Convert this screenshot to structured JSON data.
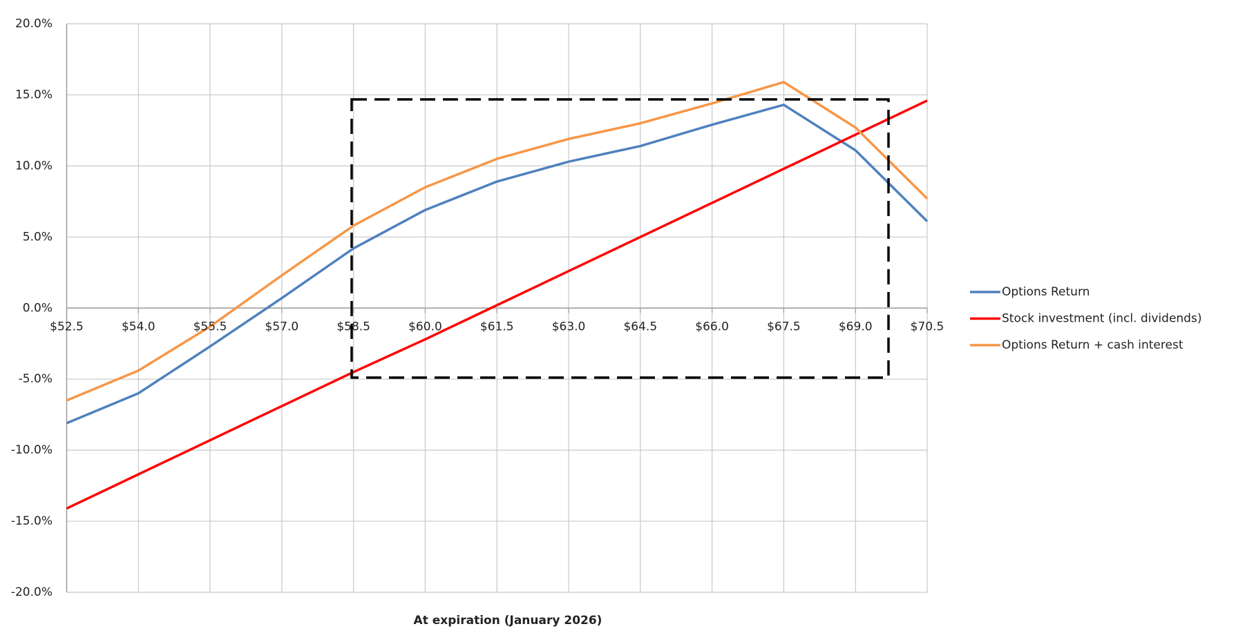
{
  "chart_data": {
    "type": "line",
    "xlabel": "At expiration (January 2026)",
    "categories": [
      "$52.5",
      "$54.0",
      "$55.5",
      "$57.0",
      "$58.5",
      "$60.0",
      "$61.5",
      "$63.0",
      "$64.5",
      "$66.0",
      "$67.5",
      "$69.0",
      "$70.5"
    ],
    "series": [
      {
        "name": "Options Return",
        "color": "#4f81bd",
        "values": [
          -8.1,
          -6.0,
          -2.7,
          0.7,
          4.2,
          6.9,
          8.9,
          10.3,
          11.4,
          12.9,
          14.3,
          11.1,
          6.1
        ]
      },
      {
        "name": "Stock investment (incl. dividends)",
        "color": "#ff0000",
        "values": [
          -14.1,
          -11.7,
          -9.3,
          -6.9,
          -4.5,
          -2.2,
          0.2,
          2.6,
          5.0,
          7.4,
          9.8,
          12.2,
          14.6
        ]
      },
      {
        "name": "Options Return + cash interest",
        "color": "#f79646",
        "values": [
          -6.5,
          -4.4,
          -1.3,
          2.3,
          5.8,
          8.5,
          10.5,
          11.9,
          13.0,
          14.4,
          15.9,
          12.7,
          7.7
        ]
      }
    ],
    "ylim": [
      -20,
      20
    ],
    "yticks": [
      {
        "value": -20,
        "label": "-20.0%"
      },
      {
        "value": -15,
        "label": "-15.0%"
      },
      {
        "value": -10,
        "label": "-10.0%"
      },
      {
        "value": -5,
        "label": "-5.0%"
      },
      {
        "value": 0,
        "label": "0.0%"
      },
      {
        "value": 5,
        "label": "5.0%"
      },
      {
        "value": 10,
        "label": "10.0%"
      },
      {
        "value": 15,
        "label": "15.0%"
      },
      {
        "value": 20,
        "label": "20.0%"
      }
    ],
    "grid": true,
    "legend": "right"
  }
}
